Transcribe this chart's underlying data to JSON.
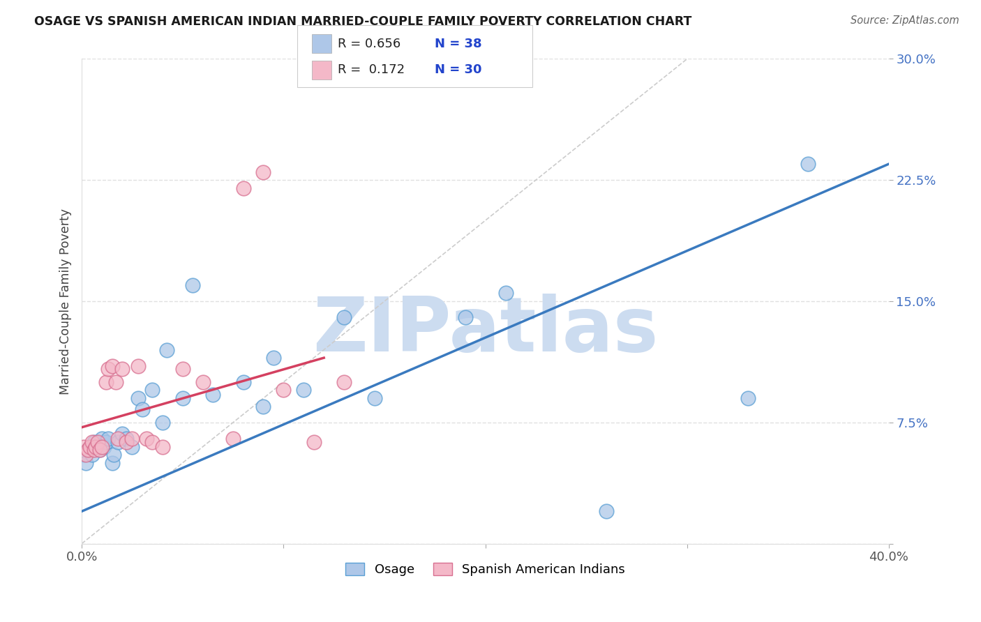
{
  "title": "OSAGE VS SPANISH AMERICAN INDIAN MARRIED-COUPLE FAMILY POVERTY CORRELATION CHART",
  "source": "Source: ZipAtlas.com",
  "ylabel": "Married-Couple Family Poverty",
  "xlim": [
    0.0,
    0.4
  ],
  "ylim": [
    0.0,
    0.3
  ],
  "color_osage": "#aec7e8",
  "color_osage_edge": "#5a9fd4",
  "color_sai": "#f4b8c8",
  "color_sai_edge": "#d87090",
  "color_osage_line": "#3a7abf",
  "color_sai_line": "#d44060",
  "color_diag": "#cccccc",
  "color_grid": "#e0e0e0",
  "watermark": "ZIPatlas",
  "watermark_color": "#ccdcf0",
  "legend_r1": "R = 0.656",
  "legend_n1": "N = 38",
  "legend_r2": "R =  0.172",
  "legend_n2": "N = 30",
  "osage_x": [
    0.001,
    0.002,
    0.003,
    0.004,
    0.005,
    0.006,
    0.007,
    0.008,
    0.009,
    0.01,
    0.011,
    0.012,
    0.013,
    0.015,
    0.016,
    0.018,
    0.02,
    0.022,
    0.025,
    0.028,
    0.03,
    0.035,
    0.04,
    0.042,
    0.05,
    0.055,
    0.065,
    0.08,
    0.09,
    0.095,
    0.11,
    0.13,
    0.145,
    0.19,
    0.21,
    0.26,
    0.33,
    0.36
  ],
  "osage_y": [
    0.055,
    0.05,
    0.058,
    0.06,
    0.055,
    0.063,
    0.06,
    0.062,
    0.058,
    0.065,
    0.06,
    0.063,
    0.065,
    0.05,
    0.055,
    0.063,
    0.068,
    0.065,
    0.06,
    0.09,
    0.083,
    0.095,
    0.075,
    0.12,
    0.09,
    0.16,
    0.092,
    0.1,
    0.085,
    0.115,
    0.095,
    0.14,
    0.09,
    0.14,
    0.155,
    0.02,
    0.09,
    0.235
  ],
  "sai_x": [
    0.001,
    0.002,
    0.003,
    0.004,
    0.005,
    0.006,
    0.007,
    0.008,
    0.009,
    0.01,
    0.012,
    0.013,
    0.015,
    0.017,
    0.018,
    0.02,
    0.022,
    0.025,
    0.028,
    0.032,
    0.035,
    0.04,
    0.05,
    0.06,
    0.075,
    0.08,
    0.09,
    0.1,
    0.115,
    0.13
  ],
  "sai_y": [
    0.06,
    0.055,
    0.058,
    0.06,
    0.063,
    0.058,
    0.06,
    0.063,
    0.058,
    0.06,
    0.1,
    0.108,
    0.11,
    0.1,
    0.065,
    0.108,
    0.063,
    0.065,
    0.11,
    0.065,
    0.063,
    0.06,
    0.108,
    0.1,
    0.065,
    0.22,
    0.23,
    0.095,
    0.063,
    0.1
  ],
  "osage_line_x": [
    0.0,
    0.4
  ],
  "osage_line_y": [
    0.02,
    0.235
  ],
  "sai_line_x": [
    0.0,
    0.12
  ],
  "sai_line_y": [
    0.072,
    0.115
  ]
}
